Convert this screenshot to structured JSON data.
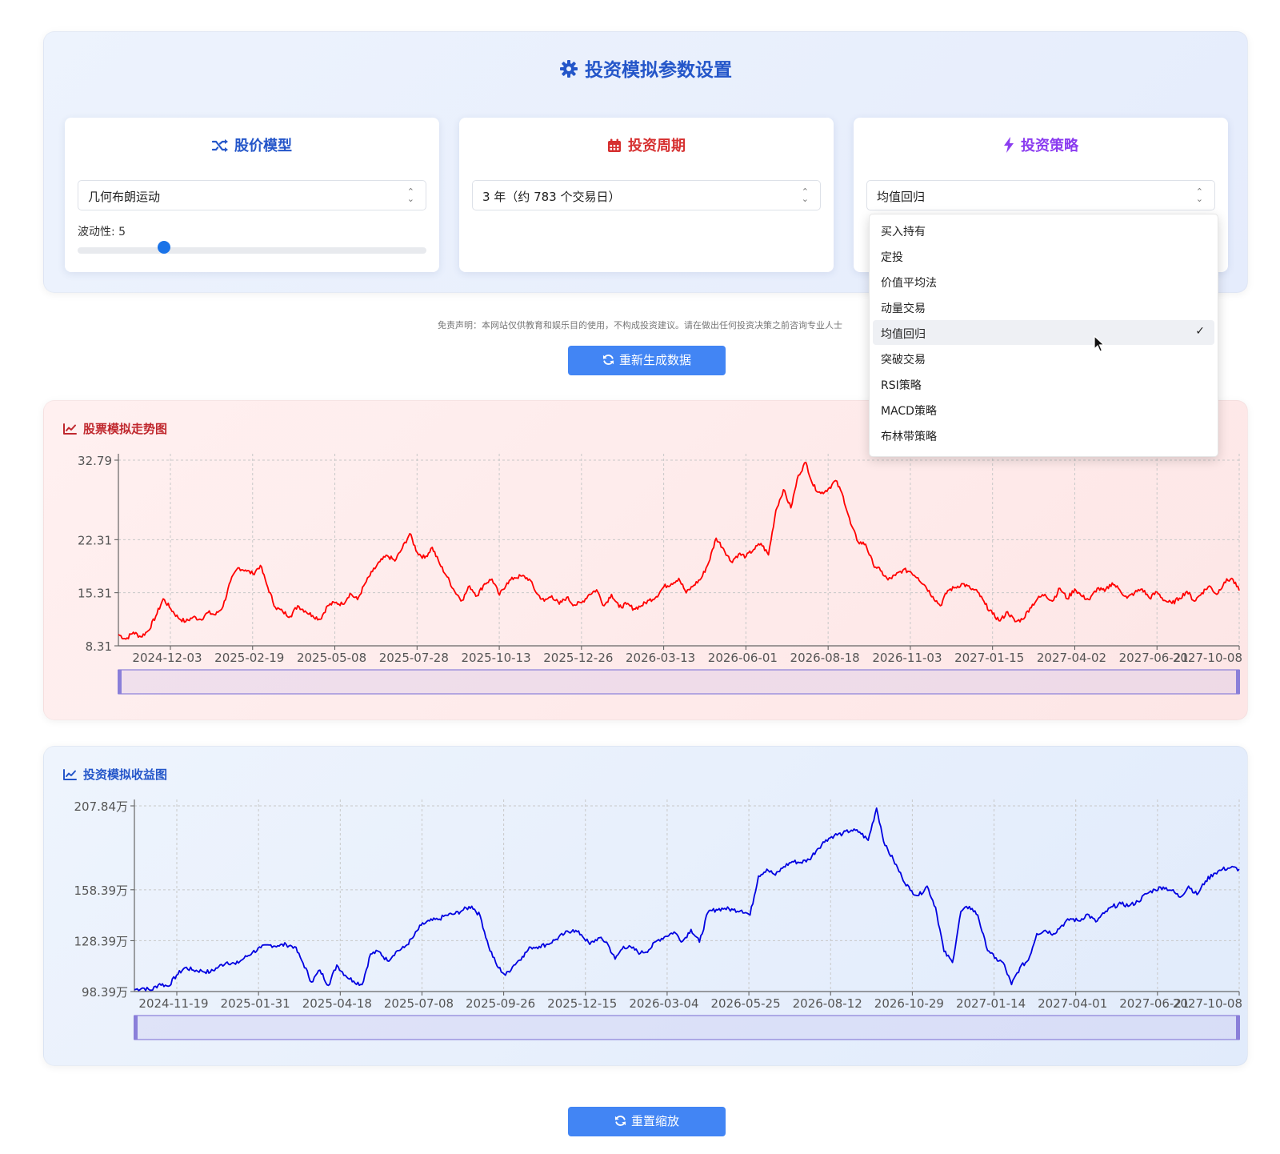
{
  "settings": {
    "title": "投资模拟参数设置",
    "model_card": {
      "title": "股价模型",
      "selected": "几何布朗运动",
      "volatility_label": "波动性: 5",
      "volatility_value": 5,
      "volatility_min": 1,
      "volatility_max": 20
    },
    "period_card": {
      "title": "投资周期",
      "selected": "3 年（约 783 个交易日）"
    },
    "strategy_card": {
      "title": "投资策略",
      "selected": "均值回归"
    },
    "strategy_options": [
      "买入持有",
      "定投",
      "价值平均法",
      "动量交易",
      "均值回归",
      "突破交易",
      "RSI策略",
      "MACD策略",
      "布林带策略"
    ],
    "selected_check": "✓"
  },
  "disclaimer": "免责声明：本网站仅供教育和娱乐目的使用，不构成投资建议。请在做出任何投资决策之前咨询专业人士",
  "buttons": {
    "regenerate": "重新生成数据",
    "reset_zoom": "重置缩放"
  },
  "colors": {
    "brand_blue": "#2456c9",
    "button_blue": "#4285f4",
    "period_red": "#d63030",
    "strategy_purple": "#8b3cf0",
    "stock_line": "#ff0000",
    "return_line": "#0000e0",
    "zoom_bar": "#8a7fd9"
  },
  "icons": {
    "settings": "gear-icon",
    "model": "shuffle-icon",
    "period": "calendar-icon",
    "strategy": "bolt-icon",
    "chart": "line-chart-icon",
    "refresh": "refresh-icon"
  },
  "stock_chart": {
    "title": "股票模拟走势图",
    "chart_data": {
      "type": "line",
      "title": "股票模拟走势图",
      "x_ticks": [
        "2024-12-03",
        "2025-02-19",
        "2025-05-08",
        "2025-07-28",
        "2025-10-13",
        "2025-12-26",
        "2026-03-13",
        "2026-06-01",
        "2026-08-18",
        "2026-11-03",
        "2027-01-15",
        "2027-04-02",
        "2027-06-21",
        "2027-10-08"
      ],
      "y_ticks": [
        "32.79",
        "22.31",
        "15.31",
        "8.31"
      ],
      "y_tick_values": [
        32.79,
        22.31,
        15.31,
        8.31
      ],
      "ylim": [
        8.31,
        32.79
      ],
      "grid": true,
      "series": [
        {
          "x_range": [
            "2024-10-08",
            "2027-10-08"
          ],
          "values": [
            9.8,
            9.2,
            10.1,
            9.5,
            10.3,
            12.2,
            14.5,
            13.2,
            12.0,
            11.5,
            12.1,
            11.8,
            12.7,
            12.4,
            13.5,
            16.8,
            18.6,
            18.3,
            17.8,
            18.9,
            16.0,
            13.4,
            12.8,
            12.2,
            13.6,
            12.9,
            12.3,
            11.8,
            13.6,
            14.0,
            13.8,
            15.2,
            14.4,
            16.5,
            18.1,
            19.4,
            20.2,
            19.5,
            21.2,
            23.1,
            20.6,
            19.9,
            21.3,
            19.1,
            17.4,
            15.5,
            14.3,
            16.2,
            14.9,
            16.5,
            17.1,
            15.0,
            16.6,
            17.3,
            17.5,
            17.1,
            15.2,
            14.2,
            14.9,
            13.8,
            14.7,
            13.7,
            14.0,
            15.1,
            15.7,
            13.6,
            15.1,
            13.4,
            13.8,
            13.2,
            13.6,
            14.3,
            14.8,
            16.1,
            16.5,
            17.2,
            15.3,
            16.3,
            17.2,
            19.3,
            22.5,
            21.1,
            19.4,
            20.4,
            20.1,
            21.0,
            21.8,
            20.3,
            26.2,
            28.9,
            26.5,
            30.8,
            32.5,
            29.4,
            28.4,
            29.0,
            30.1,
            28.0,
            24.4,
            22.0,
            21.7,
            19.1,
            18.2,
            17.0,
            17.6,
            18.3,
            18.1,
            17.3,
            16.2,
            14.8,
            13.6,
            15.6,
            16.0,
            16.5,
            15.9,
            15.4,
            13.8,
            12.5,
            11.6,
            12.8,
            11.5,
            11.8,
            13.3,
            14.5,
            15.1,
            14.2,
            15.9,
            14.5,
            15.8,
            14.8,
            14.4,
            15.9,
            15.5,
            16.6,
            15.7,
            14.6,
            15.3,
            15.8,
            14.6,
            15.4,
            14.3,
            13.9,
            14.6,
            15.5,
            14.2,
            15.3,
            16.2,
            15.1,
            16.7,
            17.2,
            15.6
          ]
        }
      ]
    }
  },
  "return_chart": {
    "title": "投资模拟收益图",
    "chart_data": {
      "type": "line",
      "title": "投资模拟收益图",
      "x_ticks": [
        "2024-11-19",
        "2025-01-31",
        "2025-04-18",
        "2025-07-08",
        "2025-09-26",
        "2025-12-15",
        "2026-03-04",
        "2026-05-25",
        "2026-08-12",
        "2026-10-29",
        "2027-01-14",
        "2027-04-01",
        "2027-06-21",
        "2027-10-08"
      ],
      "y_ticks": [
        "207.84万",
        "158.39万",
        "128.39万",
        "98.39万"
      ],
      "y_tick_values": [
        207.84,
        158.39,
        128.39,
        98.39
      ],
      "y_unit": "万",
      "ylim": [
        98.39,
        207.84
      ],
      "grid": true,
      "series": [
        {
          "x_range": [
            "2024-10-08",
            "2027-10-08"
          ],
          "values": [
            99.5,
            100.5,
            99.2,
            103.0,
            101.5,
            108.0,
            112.5,
            111.0,
            110.5,
            109.8,
            113.0,
            115.8,
            114.5,
            118.0,
            121.5,
            124.2,
            125.8,
            125.4,
            126.1,
            124.8,
            115.2,
            104.0,
            111.0,
            102.0,
            114.0,
            108.0,
            104.5,
            102.5,
            120.5,
            122.0,
            116.5,
            121.8,
            124.3,
            130.0,
            137.5,
            140.0,
            140.8,
            143.4,
            144.2,
            146.5,
            148.7,
            143.0,
            125.0,
            113.5,
            108.0,
            114.0,
            119.0,
            124.5,
            125.0,
            126.3,
            129.2,
            132.5,
            134.8,
            132.0,
            126.2,
            130.0,
            127.5,
            117.5,
            125.0,
            124.0,
            121.0,
            123.0,
            128.5,
            131.0,
            133.5,
            128.0,
            135.0,
            127.5,
            145.0,
            146.8,
            147.4,
            146.5,
            146.3,
            143.5,
            166.5,
            170.5,
            167.0,
            172.0,
            175.0,
            174.5,
            176.2,
            182.5,
            187.8,
            190.5,
            191.5,
            193.5,
            192.4,
            187.5,
            206.5,
            184.5,
            176.0,
            166.0,
            158.0,
            155.0,
            160.5,
            148.0,
            122.0,
            115.5,
            145.5,
            148.5,
            143.5,
            125.0,
            118.0,
            115.5,
            102.5,
            112.5,
            117.0,
            132.5,
            134.5,
            132.5,
            137.5,
            141.3,
            140.0,
            144.0,
            139.5,
            144.5,
            148.5,
            150.0,
            149.0,
            151.5,
            156.0,
            158.5,
            160.0,
            158.0,
            154.0,
            160.5,
            155.5,
            163.5,
            168.0,
            170.4,
            171.5,
            170.5
          ]
        }
      ]
    }
  }
}
